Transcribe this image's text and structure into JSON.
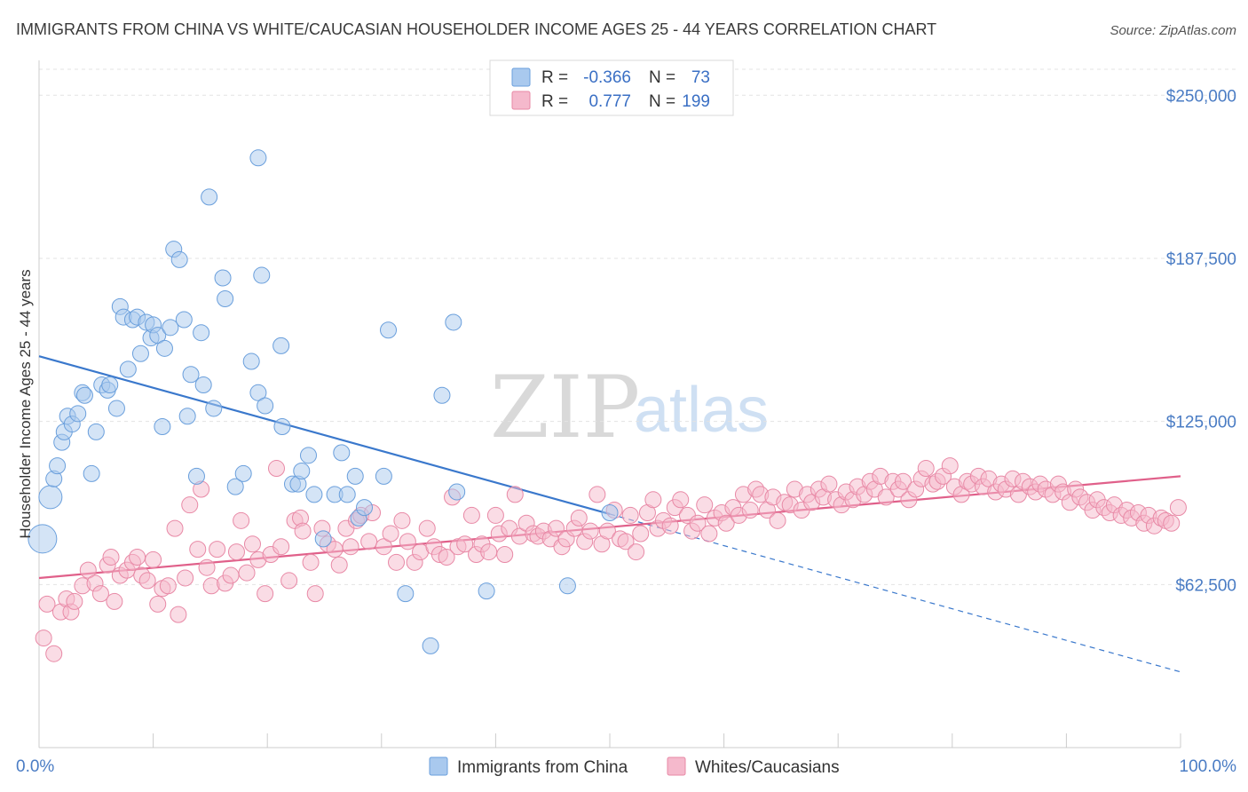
{
  "header": {
    "title": "IMMIGRANTS FROM CHINA VS WHITE/CAUCASIAN HOUSEHOLDER INCOME AGES 25 - 44 YEARS CORRELATION CHART",
    "source": "Source: ZipAtlas.com"
  },
  "watermark": {
    "zip": "ZIP",
    "atlas": "atlas"
  },
  "legend": {
    "rows": [
      {
        "r_label": "R =",
        "r_value": "-0.366",
        "n_label": "N =",
        "n_value": "73",
        "color": "#a9c9ee"
      },
      {
        "r_label": "R =",
        "r_value": "0.777",
        "n_label": "N =",
        "n_value": "199",
        "color": "#f5b9cc"
      }
    ]
  },
  "chart_data": {
    "type": "scatter",
    "title": "IMMIGRANTS FROM CHINA VS WHITE/CAUCASIAN HOUSEHOLDER INCOME AGES 25 - 44 YEARS CORRELATION CHART",
    "xlabel": "",
    "ylabel": "Householder Income Ages 25 - 44 years",
    "xlim": [
      0,
      100
    ],
    "ylim": [
      0,
      262000
    ],
    "x_tick_labels": [
      "0.0%",
      "100.0%"
    ],
    "y_ticks": [
      62500,
      125000,
      187500,
      250000
    ],
    "y_tick_labels": [
      "$62,500",
      "$125,000",
      "$187,500",
      "$250,000"
    ],
    "grid": true,
    "legend_position": "top-center",
    "series": [
      {
        "name": "Immigrants from China",
        "color": "#a9c9ee",
        "stroke": "#6a9fdc",
        "trend_color": "#3a78cc",
        "trend": {
          "x0": 0,
          "y0": 150000,
          "x1": 100,
          "y1": 29000,
          "solid_until": 50
        },
        "points": [
          [
            0.3,
            80000
          ],
          [
            1.0,
            96000
          ],
          [
            1.3,
            103000
          ],
          [
            1.6,
            108000
          ],
          [
            2.0,
            117000
          ],
          [
            2.2,
            121000
          ],
          [
            2.5,
            127000
          ],
          [
            2.9,
            124000
          ],
          [
            3.4,
            128000
          ],
          [
            3.8,
            136000
          ],
          [
            4.0,
            135000
          ],
          [
            4.6,
            105000
          ],
          [
            5.0,
            121000
          ],
          [
            5.5,
            139000
          ],
          [
            6.0,
            137000
          ],
          [
            6.2,
            139000
          ],
          [
            6.8,
            130000
          ],
          [
            7.1,
            169000
          ],
          [
            7.4,
            165000
          ],
          [
            7.8,
            145000
          ],
          [
            8.2,
            164000
          ],
          [
            8.6,
            165000
          ],
          [
            8.9,
            151000
          ],
          [
            9.4,
            163000
          ],
          [
            9.8,
            157000
          ],
          [
            10.0,
            162000
          ],
          [
            10.4,
            158000
          ],
          [
            10.8,
            123000
          ],
          [
            11.0,
            153000
          ],
          [
            11.5,
            161000
          ],
          [
            11.8,
            191000
          ],
          [
            12.3,
            187000
          ],
          [
            12.7,
            164000
          ],
          [
            13.0,
            127000
          ],
          [
            13.3,
            143000
          ],
          [
            13.8,
            104000
          ],
          [
            14.2,
            159000
          ],
          [
            14.4,
            139000
          ],
          [
            14.9,
            211000
          ],
          [
            15.3,
            130000
          ],
          [
            16.1,
            180000
          ],
          [
            16.3,
            172000
          ],
          [
            17.2,
            100000
          ],
          [
            17.9,
            105000
          ],
          [
            18.6,
            148000
          ],
          [
            19.2,
            136000
          ],
          [
            19.2,
            226000
          ],
          [
            19.5,
            181000
          ],
          [
            19.8,
            131000
          ],
          [
            21.2,
            154000
          ],
          [
            21.3,
            123000
          ],
          [
            22.2,
            101000
          ],
          [
            22.7,
            101000
          ],
          [
            23.0,
            106000
          ],
          [
            23.6,
            112000
          ],
          [
            24.1,
            97000
          ],
          [
            24.9,
            80000
          ],
          [
            25.9,
            97000
          ],
          [
            26.5,
            113000
          ],
          [
            27.0,
            97000
          ],
          [
            27.7,
            104000
          ],
          [
            28.0,
            88000
          ],
          [
            28.5,
            92000
          ],
          [
            30.2,
            104000
          ],
          [
            30.6,
            160000
          ],
          [
            32.1,
            59000
          ],
          [
            34.3,
            39000
          ],
          [
            35.3,
            135000
          ],
          [
            36.3,
            163000
          ],
          [
            36.6,
            98000
          ],
          [
            39.2,
            60000
          ],
          [
            46.3,
            62000
          ],
          [
            50.0,
            90000
          ]
        ]
      },
      {
        "name": "Whites/Caucasians",
        "color": "#f5b9cc",
        "stroke": "#e889a6",
        "trend_color": "#e0608a",
        "trend": {
          "x0": 0,
          "y0": 65000,
          "x1": 100,
          "y1": 104000,
          "solid_until": 100
        },
        "points": [
          [
            0.4,
            42000
          ],
          [
            0.7,
            55000
          ],
          [
            1.3,
            36000
          ],
          [
            1.9,
            52000
          ],
          [
            2.4,
            57000
          ],
          [
            2.8,
            52000
          ],
          [
            3.1,
            56000
          ],
          [
            3.8,
            62000
          ],
          [
            4.3,
            68000
          ],
          [
            4.9,
            63000
          ],
          [
            5.4,
            59000
          ],
          [
            6.0,
            70000
          ],
          [
            6.3,
            73000
          ],
          [
            6.6,
            56000
          ],
          [
            7.1,
            66000
          ],
          [
            7.7,
            68000
          ],
          [
            8.2,
            71000
          ],
          [
            8.6,
            73000
          ],
          [
            9.0,
            66000
          ],
          [
            9.5,
            64000
          ],
          [
            10.0,
            72000
          ],
          [
            10.4,
            55000
          ],
          [
            10.8,
            61000
          ],
          [
            11.3,
            62000
          ],
          [
            11.9,
            84000
          ],
          [
            12.2,
            51000
          ],
          [
            12.8,
            65000
          ],
          [
            13.2,
            93000
          ],
          [
            13.9,
            76000
          ],
          [
            14.2,
            99000
          ],
          [
            14.7,
            69000
          ],
          [
            15.1,
            62000
          ],
          [
            15.6,
            76000
          ],
          [
            16.3,
            63000
          ],
          [
            16.8,
            66000
          ],
          [
            17.3,
            75000
          ],
          [
            17.7,
            87000
          ],
          [
            18.2,
            67000
          ],
          [
            18.7,
            78000
          ],
          [
            19.2,
            72000
          ],
          [
            19.8,
            59000
          ],
          [
            20.3,
            74000
          ],
          [
            20.8,
            107000
          ],
          [
            21.2,
            77000
          ],
          [
            21.9,
            64000
          ],
          [
            22.4,
            87000
          ],
          [
            22.9,
            88000
          ],
          [
            23.1,
            83000
          ],
          [
            23.8,
            71000
          ],
          [
            24.2,
            59000
          ],
          [
            24.8,
            84000
          ],
          [
            25.3,
            78000
          ],
          [
            25.9,
            76000
          ],
          [
            26.3,
            70000
          ],
          [
            26.9,
            84000
          ],
          [
            27.3,
            77000
          ],
          [
            27.8,
            87000
          ],
          [
            28.2,
            89000
          ],
          [
            28.9,
            79000
          ],
          [
            29.2,
            90000
          ],
          [
            30.2,
            77000
          ],
          [
            30.8,
            82000
          ],
          [
            31.3,
            71000
          ],
          [
            31.8,
            87000
          ],
          [
            32.3,
            79000
          ],
          [
            32.9,
            71000
          ],
          [
            33.4,
            75000
          ],
          [
            34.0,
            84000
          ],
          [
            34.6,
            77000
          ],
          [
            35.1,
            74000
          ],
          [
            35.7,
            73000
          ],
          [
            36.2,
            96000
          ],
          [
            36.7,
            77000
          ],
          [
            37.3,
            78000
          ],
          [
            37.9,
            89000
          ],
          [
            38.3,
            74000
          ],
          [
            38.8,
            78000
          ],
          [
            39.4,
            75000
          ],
          [
            40.0,
            89000
          ],
          [
            40.3,
            82000
          ],
          [
            40.8,
            74000
          ],
          [
            41.2,
            84000
          ],
          [
            41.7,
            97000
          ],
          [
            42.1,
            81000
          ],
          [
            42.7,
            86000
          ],
          [
            43.3,
            82000
          ],
          [
            43.7,
            81000
          ],
          [
            44.2,
            83000
          ],
          [
            44.8,
            80000
          ],
          [
            45.3,
            84000
          ],
          [
            45.8,
            77000
          ],
          [
            46.2,
            80000
          ],
          [
            46.9,
            84000
          ],
          [
            47.3,
            88000
          ],
          [
            47.8,
            79000
          ],
          [
            48.3,
            83000
          ],
          [
            48.9,
            97000
          ],
          [
            49.3,
            78000
          ],
          [
            49.8,
            83000
          ],
          [
            50.4,
            91000
          ],
          [
            50.9,
            80000
          ],
          [
            51.4,
            79000
          ],
          [
            51.8,
            89000
          ],
          [
            52.3,
            75000
          ],
          [
            52.7,
            82000
          ],
          [
            53.3,
            90000
          ],
          [
            53.8,
            95000
          ],
          [
            54.2,
            84000
          ],
          [
            54.7,
            87000
          ],
          [
            55.3,
            85000
          ],
          [
            55.7,
            92000
          ],
          [
            56.2,
            95000
          ],
          [
            56.8,
            89000
          ],
          [
            57.2,
            83000
          ],
          [
            57.7,
            86000
          ],
          [
            58.3,
            93000
          ],
          [
            58.7,
            82000
          ],
          [
            59.2,
            88000
          ],
          [
            59.8,
            90000
          ],
          [
            60.2,
            86000
          ],
          [
            60.8,
            92000
          ],
          [
            61.3,
            89000
          ],
          [
            61.7,
            97000
          ],
          [
            62.3,
            91000
          ],
          [
            62.8,
            99000
          ],
          [
            63.2,
            97000
          ],
          [
            63.8,
            91000
          ],
          [
            64.3,
            96000
          ],
          [
            64.7,
            87000
          ],
          [
            65.3,
            94000
          ],
          [
            65.8,
            93000
          ],
          [
            66.2,
            99000
          ],
          [
            66.8,
            91000
          ],
          [
            67.3,
            97000
          ],
          [
            67.7,
            94000
          ],
          [
            68.3,
            99000
          ],
          [
            68.7,
            96000
          ],
          [
            69.2,
            101000
          ],
          [
            69.8,
            95000
          ],
          [
            70.3,
            93000
          ],
          [
            70.7,
            98000
          ],
          [
            71.3,
            95000
          ],
          [
            71.7,
            100000
          ],
          [
            72.3,
            97000
          ],
          [
            72.8,
            102000
          ],
          [
            73.2,
            99000
          ],
          [
            73.7,
            104000
          ],
          [
            74.2,
            96000
          ],
          [
            74.8,
            102000
          ],
          [
            75.3,
            99000
          ],
          [
            75.7,
            102000
          ],
          [
            76.2,
            95000
          ],
          [
            76.8,
            99000
          ],
          [
            77.3,
            103000
          ],
          [
            77.7,
            107000
          ],
          [
            78.3,
            101000
          ],
          [
            78.7,
            102000
          ],
          [
            79.2,
            104000
          ],
          [
            79.8,
            108000
          ],
          [
            80.2,
            100000
          ],
          [
            80.8,
            97000
          ],
          [
            81.3,
            102000
          ],
          [
            81.7,
            101000
          ],
          [
            82.3,
            104000
          ],
          [
            82.7,
            100000
          ],
          [
            83.2,
            103000
          ],
          [
            83.8,
            98000
          ],
          [
            84.3,
            101000
          ],
          [
            84.7,
            99000
          ],
          [
            85.3,
            103000
          ],
          [
            85.8,
            97000
          ],
          [
            86.2,
            102000
          ],
          [
            86.8,
            100000
          ],
          [
            87.3,
            98000
          ],
          [
            87.7,
            101000
          ],
          [
            88.2,
            99000
          ],
          [
            88.8,
            97000
          ],
          [
            89.3,
            101000
          ],
          [
            89.7,
            98000
          ],
          [
            90.3,
            94000
          ],
          [
            90.8,
            99000
          ],
          [
            91.2,
            96000
          ],
          [
            91.8,
            94000
          ],
          [
            92.3,
            91000
          ],
          [
            92.7,
            95000
          ],
          [
            93.3,
            92000
          ],
          [
            93.8,
            90000
          ],
          [
            94.2,
            93000
          ],
          [
            94.8,
            89000
          ],
          [
            95.3,
            91000
          ],
          [
            95.7,
            88000
          ],
          [
            96.3,
            90000
          ],
          [
            96.8,
            86000
          ],
          [
            97.2,
            89000
          ],
          [
            97.7,
            85000
          ],
          [
            98.3,
            88000
          ],
          [
            98.7,
            87000
          ],
          [
            99.2,
            86000
          ],
          [
            99.8,
            92000
          ]
        ]
      }
    ]
  },
  "bottom_legend": {
    "items": [
      {
        "label": "Immigrants from China"
      },
      {
        "label": "Whites/Caucasians"
      }
    ]
  }
}
